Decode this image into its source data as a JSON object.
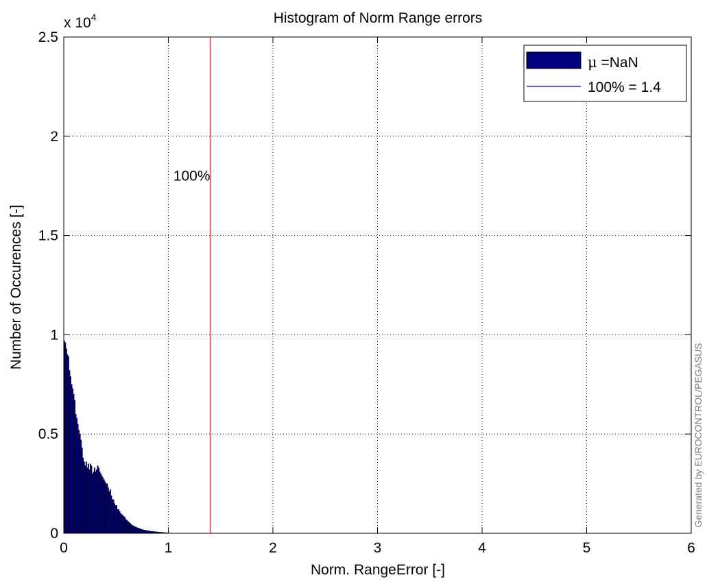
{
  "chart_data": {
    "type": "bar",
    "title": "Histogram of Norm Range errors",
    "xlabel": "Norm. RangeError [-]",
    "ylabel": "Number of Occurences [-]",
    "y_exponent_label": "x 10",
    "y_exponent_power": "4",
    "xlim": [
      0,
      6
    ],
    "ylim": [
      0,
      25000
    ],
    "x_ticks": [
      0,
      1,
      2,
      3,
      4,
      5,
      6
    ],
    "x_tick_labels": [
      "0",
      "1",
      "2",
      "3",
      "4",
      "5",
      "6"
    ],
    "y_ticks": [
      0,
      5000,
      10000,
      15000,
      20000,
      25000
    ],
    "y_tick_labels": [
      "0",
      "0.5",
      "1",
      "1.5",
      "2",
      "2.5"
    ],
    "grid": true,
    "legend_position": "top-right",
    "legend": [
      {
        "label_symbol": "μ",
        "label_text": " =NaN",
        "kind": "bar"
      },
      {
        "label_text": "100% = 1.4",
        "kind": "line"
      }
    ],
    "bin_width": 0.01,
    "bins": {
      "x_start": 0.005,
      "values": [
        9700,
        9600,
        9300,
        9000,
        8900,
        8200,
        7900,
        7500,
        7300,
        7000,
        6700,
        6000,
        5800,
        5500,
        5200,
        5000,
        4700,
        4300,
        3800,
        3600,
        3400,
        3600,
        3300,
        3500,
        3200,
        3500,
        3400,
        3000,
        3100,
        3300,
        3100,
        3200,
        3400,
        3300,
        3100,
        3000,
        2900,
        2800,
        2700,
        2600,
        2500,
        2500,
        2300,
        2100,
        2200,
        1900,
        1700,
        1700,
        1500,
        1400,
        1400,
        1200,
        1200,
        1100,
        1000,
        950,
        900,
        850,
        800,
        700,
        650,
        600,
        550,
        500,
        450,
        400,
        380,
        350,
        320,
        300,
        280,
        260,
        240,
        220,
        200,
        180,
        170,
        160,
        150,
        140,
        130,
        120,
        110,
        100,
        95,
        90,
        85,
        80,
        75,
        70,
        65,
        60,
        55,
        50,
        45,
        40,
        35,
        30,
        25,
        20,
        18,
        16,
        14,
        12,
        10,
        8,
        6,
        5,
        4,
        3,
        2,
        2,
        1,
        1,
        1,
        1
      ],
      "bar_color": "#00007f"
    },
    "reference_line": {
      "x": 1.4,
      "color": "#e8262b",
      "label": "100%",
      "label_y": 18000
    }
  },
  "watermark": "Generated by EUROCONTROL/PEGASUS",
  "colors": {
    "bar": "#00007f",
    "legend_line": "#0000ff",
    "reference": "#e8262b"
  }
}
